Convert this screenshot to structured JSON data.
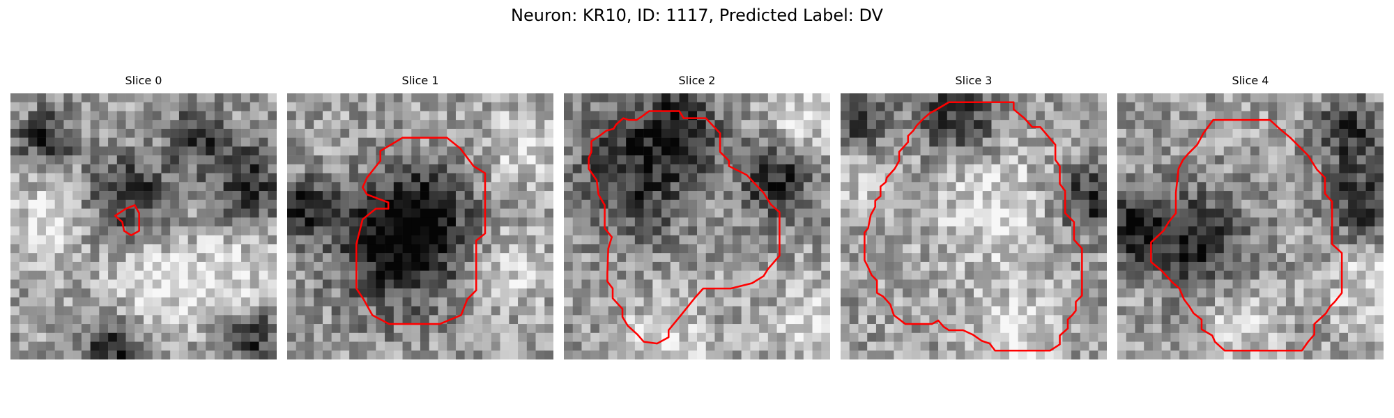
{
  "figure": {
    "title": "Neuron: KR10, ID: 1117, Predicted Label: DV"
  },
  "colors": {
    "contour": "#ff0000",
    "background": "#ffffff"
  },
  "grid_size": 30,
  "panels": [
    {
      "title": "Slice 0",
      "seed": 11,
      "contour": [
        [
          13,
          13
        ],
        [
          14,
          12.6
        ],
        [
          14.5,
          13.5
        ],
        [
          14.5,
          15.5
        ],
        [
          13.6,
          16
        ],
        [
          12.8,
          15.5
        ],
        [
          12.6,
          14.5
        ],
        [
          11.8,
          13.8
        ]
      ],
      "dark_spots": [
        [
          13.5,
          11.5,
          3.2
        ],
        [
          26.5,
          10,
          3
        ],
        [
          11.5,
          29,
          2.6
        ],
        [
          27.5,
          27.5,
          2.4
        ],
        [
          21,
          5,
          2.2
        ],
        [
          4,
          5,
          2.2
        ]
      ],
      "light_spots": [
        [
          25,
          21,
          4
        ],
        [
          4,
          14,
          3
        ],
        [
          16,
          22,
          3.5
        ]
      ]
    },
    {
      "title": "Slice 1",
      "seed": 23,
      "contour": [
        [
          13,
          5
        ],
        [
          18,
          5
        ],
        [
          19.5,
          6.2
        ],
        [
          21,
          8.2
        ],
        [
          22.3,
          9
        ],
        [
          22.3,
          15.8
        ],
        [
          21.3,
          16.6
        ],
        [
          21.3,
          22.2
        ],
        [
          20.3,
          23.2
        ],
        [
          19.6,
          25
        ],
        [
          17.2,
          26
        ],
        [
          11.5,
          26
        ],
        [
          9.6,
          25
        ],
        [
          8.6,
          23.2
        ],
        [
          7.8,
          22
        ],
        [
          7.8,
          17
        ],
        [
          8.5,
          14.2
        ],
        [
          10,
          13
        ],
        [
          11.4,
          13
        ],
        [
          11.4,
          12.3
        ],
        [
          9,
          11.4
        ],
        [
          8.5,
          10.6
        ],
        [
          9,
          9.5
        ],
        [
          10.5,
          7.6
        ],
        [
          10.5,
          6.5
        ]
      ],
      "dark_spots": [
        [
          12,
          18,
          5
        ],
        [
          15,
          14,
          4
        ],
        [
          2,
          13,
          2.5
        ]
      ],
      "light_spots": [
        [
          27,
          6,
          3
        ],
        [
          25,
          20,
          3
        ]
      ]
    },
    {
      "title": "Slice 2",
      "seed": 37,
      "contour": [
        [
          9.6,
          2
        ],
        [
          13,
          2
        ],
        [
          13.5,
          2.8
        ],
        [
          16,
          2.8
        ],
        [
          17.6,
          4.5
        ],
        [
          17.6,
          6.6
        ],
        [
          18.6,
          7.6
        ],
        [
          18.6,
          8.2
        ],
        [
          20.6,
          9.2
        ],
        [
          22.5,
          11.2
        ],
        [
          23.3,
          12.5
        ],
        [
          24.3,
          13.4
        ],
        [
          24.3,
          18.3
        ],
        [
          23,
          19.8
        ],
        [
          22.5,
          20.6
        ],
        [
          21.2,
          21.4
        ],
        [
          18.8,
          22
        ],
        [
          15.7,
          22
        ],
        [
          14.8,
          23
        ],
        [
          13.2,
          25
        ],
        [
          11.8,
          26.7
        ],
        [
          11.8,
          27.5
        ],
        [
          10.5,
          28.2
        ],
        [
          9,
          28
        ],
        [
          8.3,
          27.2
        ],
        [
          7.2,
          26.2
        ],
        [
          6.6,
          25.2
        ],
        [
          6.6,
          24.3
        ],
        [
          5.5,
          23.1
        ],
        [
          5.5,
          22
        ],
        [
          4.9,
          21.2
        ],
        [
          4.9,
          20.3
        ],
        [
          5,
          17.5
        ],
        [
          5.4,
          16.2
        ],
        [
          4.6,
          15.2
        ],
        [
          4.6,
          12.6
        ],
        [
          3.9,
          11.4
        ],
        [
          3.7,
          9.8
        ],
        [
          2.8,
          8.5
        ],
        [
          2.8,
          7.3
        ],
        [
          3.1,
          6.6
        ],
        [
          3.1,
          5.4
        ],
        [
          4,
          4.8
        ],
        [
          4.8,
          4.2
        ],
        [
          5.6,
          4
        ],
        [
          5.9,
          3.5
        ],
        [
          6.7,
          2.8
        ],
        [
          7.3,
          3
        ],
        [
          8.2,
          3
        ],
        [
          8.8,
          2.6
        ]
      ],
      "dark_spots": [
        [
          8,
          9,
          5
        ],
        [
          24,
          10,
          3
        ],
        [
          13,
          3.5,
          3
        ]
      ],
      "light_spots": [
        [
          11,
          28,
          3.5
        ],
        [
          28,
          26,
          3
        ],
        [
          27,
          3,
          2.5
        ]
      ]
    },
    {
      "title": "Slice 3",
      "seed": 53,
      "contour": [
        [
          12.2,
          1
        ],
        [
          19.5,
          1
        ],
        [
          19.5,
          1.8
        ],
        [
          20.7,
          2.8
        ],
        [
          21.6,
          3.8
        ],
        [
          22.5,
          3.8
        ],
        [
          24.2,
          5.8
        ],
        [
          24.2,
          7.5
        ],
        [
          24.7,
          8.2
        ],
        [
          24.7,
          10.2
        ],
        [
          25.3,
          11
        ],
        [
          25.3,
          13.5
        ],
        [
          26.3,
          14.5
        ],
        [
          26.3,
          16.5
        ],
        [
          27.2,
          17.5
        ],
        [
          27.2,
          22.8
        ],
        [
          26.5,
          23.5
        ],
        [
          26.5,
          24.5
        ],
        [
          26.1,
          25
        ],
        [
          25.6,
          25.5
        ],
        [
          25.6,
          26.5
        ],
        [
          24.7,
          27.3
        ],
        [
          24.7,
          28.3
        ],
        [
          23.6,
          29
        ],
        [
          17.4,
          29
        ],
        [
          16.8,
          28.2
        ],
        [
          15.9,
          27.9
        ],
        [
          14.9,
          27.2
        ],
        [
          13.8,
          26.7
        ],
        [
          12.2,
          26.7
        ],
        [
          11.6,
          26.3
        ],
        [
          11,
          25.6
        ],
        [
          10.3,
          26
        ],
        [
          7.3,
          26
        ],
        [
          6,
          25
        ],
        [
          5.6,
          23.8
        ],
        [
          4.8,
          22.9
        ],
        [
          4.1,
          22.5
        ],
        [
          4.1,
          21.1
        ],
        [
          3.5,
          20.5
        ],
        [
          3.1,
          19.6
        ],
        [
          2.7,
          18.8
        ],
        [
          2.7,
          15.7
        ],
        [
          3.1,
          15.2
        ],
        [
          3.4,
          13.7
        ],
        [
          3.9,
          12.8
        ],
        [
          3.9,
          12.1
        ],
        [
          4.5,
          11.6
        ],
        [
          4.5,
          10.5
        ],
        [
          5.1,
          10
        ],
        [
          5.2,
          9.5
        ],
        [
          6.1,
          8.5
        ],
        [
          6.6,
          7.6
        ],
        [
          6.6,
          6.6
        ],
        [
          7.6,
          5.5
        ],
        [
          7.6,
          4.8
        ],
        [
          8.2,
          4.2
        ],
        [
          8.6,
          3.6
        ],
        [
          9.4,
          2.8
        ],
        [
          10.1,
          2.2
        ],
        [
          10.5,
          2
        ]
      ],
      "dark_spots": [
        [
          13,
          3,
          3.2
        ],
        [
          2,
          4,
          2.5
        ],
        [
          28,
          12,
          2.8
        ]
      ],
      "light_spots": [
        [
          17,
          13,
          5
        ],
        [
          20,
          27,
          3.5
        ],
        [
          2,
          8,
          3
        ]
      ]
    },
    {
      "title": "Slice 4",
      "seed": 71,
      "contour": [
        [
          10.8,
          3
        ],
        [
          17.2,
          3
        ],
        [
          18.3,
          4
        ],
        [
          19.5,
          5
        ],
        [
          21.5,
          7
        ],
        [
          22.5,
          8.6
        ],
        [
          23.4,
          9.5
        ],
        [
          23.4,
          11.3
        ],
        [
          24.2,
          12.2
        ],
        [
          24.2,
          17
        ],
        [
          25.3,
          18
        ],
        [
          25.3,
          22.5
        ],
        [
          24.5,
          23.5
        ],
        [
          24,
          24
        ],
        [
          23.5,
          24.8
        ],
        [
          22.2,
          26
        ],
        [
          22.2,
          27.2
        ],
        [
          21.5,
          28
        ],
        [
          20.8,
          29
        ],
        [
          12.1,
          29
        ],
        [
          11,
          28
        ],
        [
          10.7,
          27.3
        ],
        [
          9.5,
          26.6
        ],
        [
          9.5,
          25.5
        ],
        [
          8.6,
          24.8
        ],
        [
          8.1,
          24
        ],
        [
          7.5,
          23.2
        ],
        [
          7,
          22
        ],
        [
          6.2,
          21.3
        ],
        [
          5,
          20
        ],
        [
          3.8,
          19
        ],
        [
          3.8,
          16.8
        ],
        [
          5.2,
          15.5
        ],
        [
          5.8,
          14.5
        ],
        [
          6.6,
          13.5
        ],
        [
          6.6,
          12.4
        ],
        [
          6.6,
          11.2
        ],
        [
          6.9,
          8.5
        ],
        [
          7.4,
          7.5
        ],
        [
          8,
          6.8
        ],
        [
          9,
          5.8
        ],
        [
          9.7,
          4.5
        ]
      ],
      "dark_spots": [
        [
          9,
          17,
          4
        ],
        [
          2,
          15,
          3
        ],
        [
          27.5,
          12,
          3
        ],
        [
          26,
          4,
          2.5
        ]
      ],
      "light_spots": [
        [
          14,
          26,
          3
        ],
        [
          28,
          22,
          3
        ]
      ]
    }
  ]
}
